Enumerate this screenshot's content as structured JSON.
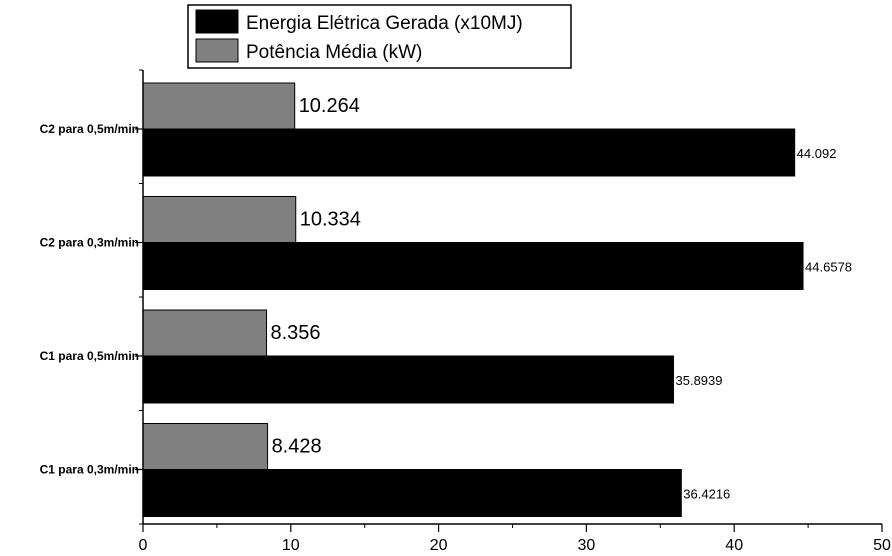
{
  "chart_data": {
    "type": "bar",
    "orientation": "horizontal",
    "categories": [
      "C2 para 0,5m/min",
      "C2 para 0,3m/min",
      "C1 para 0,5m/min",
      "C1 para 0,3m/min"
    ],
    "series": [
      {
        "name": "Energia Elétrica Gerada (x10MJ)",
        "color": "#000000",
        "values": [
          44.092,
          44.6578,
          35.8939,
          36.4216
        ],
        "labels": [
          "44.092",
          "44.6578",
          "35.8939",
          "36.4216"
        ]
      },
      {
        "name": "Potência Média (kW)",
        "color": "#808080",
        "values": [
          10.264,
          10.334,
          8.356,
          8.428
        ],
        "labels": [
          "10.264",
          "10.334",
          "8.356",
          "8.428"
        ]
      }
    ],
    "xlim": [
      0,
      50
    ],
    "xticks": [
      "0",
      "10",
      "20",
      "30",
      "40",
      "50"
    ],
    "xlabel": "",
    "ylabel": "",
    "grid": false,
    "legend_position": "top"
  }
}
